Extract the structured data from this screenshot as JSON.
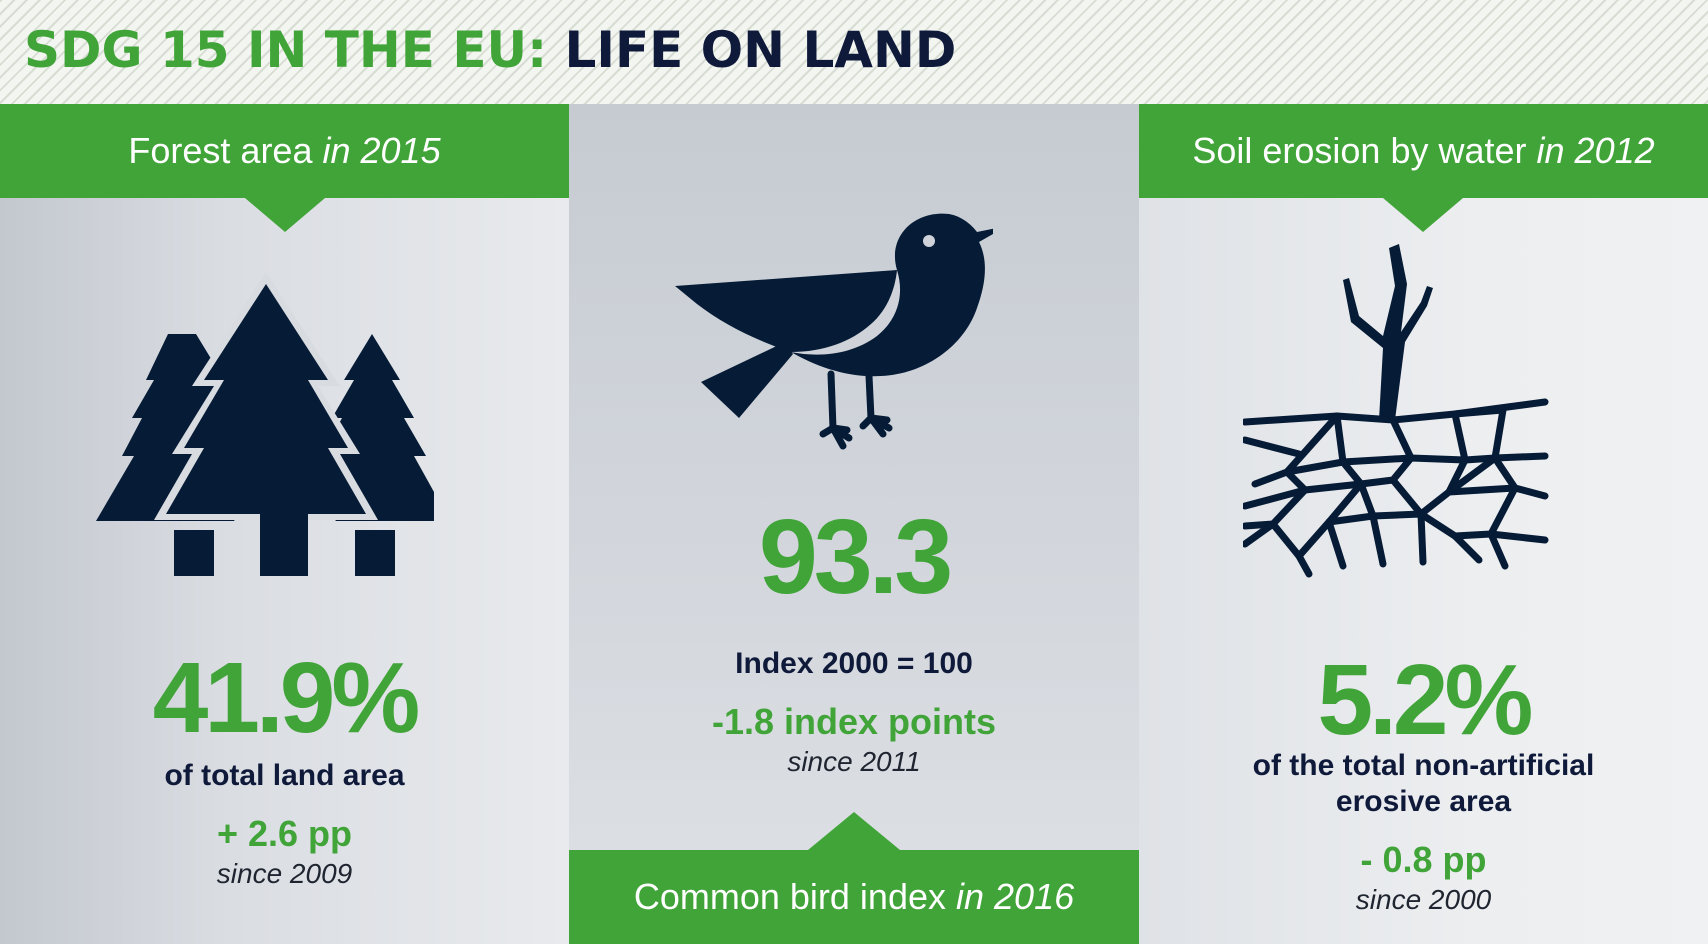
{
  "title": {
    "part1": "SDG 15 IN THE EU:",
    "part2": "LIFE ON LAND"
  },
  "colors": {
    "green": "#41a439",
    "navy": "#0f1a3a",
    "icon": "#061b36"
  },
  "panels": {
    "forest": {
      "heading": "Forest area",
      "heading_year": "in 2015",
      "icon": "pine-trees-icon",
      "value": "41.9%",
      "value_label": "of total land area",
      "change": "+ 2.6 pp",
      "since": "since 2009"
    },
    "birds": {
      "heading": "Common bird index",
      "heading_year": "in 2016",
      "icon": "bird-icon",
      "value": "93.3",
      "value_label": "Index 2000 = 100",
      "change": "-1.8 index points",
      "since": "since 2011"
    },
    "soil": {
      "heading": "Soil erosion by water",
      "heading_year": "in 2012",
      "icon": "dead-tree-cracked-soil-icon",
      "value": "5.2%",
      "value_label_line1": "of the total non-artificial",
      "value_label_line2": "erosive area",
      "change": "- 0.8 pp",
      "since": "since 2000"
    }
  }
}
